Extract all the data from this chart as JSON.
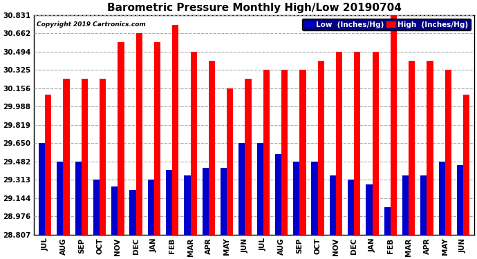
{
  "title": "Barometric Pressure Monthly High/Low 20190704",
  "copyright": "Copyright 2019 Cartronics.com",
  "legend_low": "Low  (Inches/Hg)",
  "legend_high": "High  (Inches/Hg)",
  "months": [
    "JUL",
    "AUG",
    "SEP",
    "OCT",
    "NOV",
    "DEC",
    "JAN",
    "FEB",
    "MAR",
    "APR",
    "MAY",
    "JUN",
    "JUL",
    "AUG",
    "SEP",
    "OCT",
    "NOV",
    "DEC",
    "JAN",
    "FEB",
    "MAR",
    "APR",
    "MAY",
    "JUN"
  ],
  "high_values": [
    30.1,
    30.241,
    30.241,
    30.241,
    30.578,
    30.662,
    30.578,
    30.738,
    30.494,
    30.41,
    30.156,
    30.241,
    30.325,
    30.325,
    30.325,
    30.41,
    30.494,
    30.494,
    30.494,
    30.831,
    30.41,
    30.41,
    30.325,
    30.1
  ],
  "low_values": [
    29.65,
    29.482,
    29.482,
    29.313,
    29.25,
    29.22,
    29.313,
    29.4,
    29.35,
    29.42,
    29.42,
    29.65,
    29.65,
    29.55,
    29.482,
    29.482,
    29.35,
    29.313,
    29.27,
    29.06,
    29.35,
    29.35,
    29.482,
    29.45
  ],
  "yticks": [
    28.807,
    28.976,
    29.144,
    29.313,
    29.482,
    29.65,
    29.819,
    29.988,
    30.156,
    30.325,
    30.494,
    30.662,
    30.831
  ],
  "ymin": 28.807,
  "ymax": 30.831,
  "bar_color_high": "#ff0000",
  "bar_color_low": "#0000cc",
  "background_color": "#ffffff",
  "grid_color": "#aaaaaa",
  "title_fontsize": 11,
  "tick_fontsize": 7.5,
  "copyright_fontsize": 6.5,
  "legend_fontsize": 7.5,
  "bar_width": 0.35
}
